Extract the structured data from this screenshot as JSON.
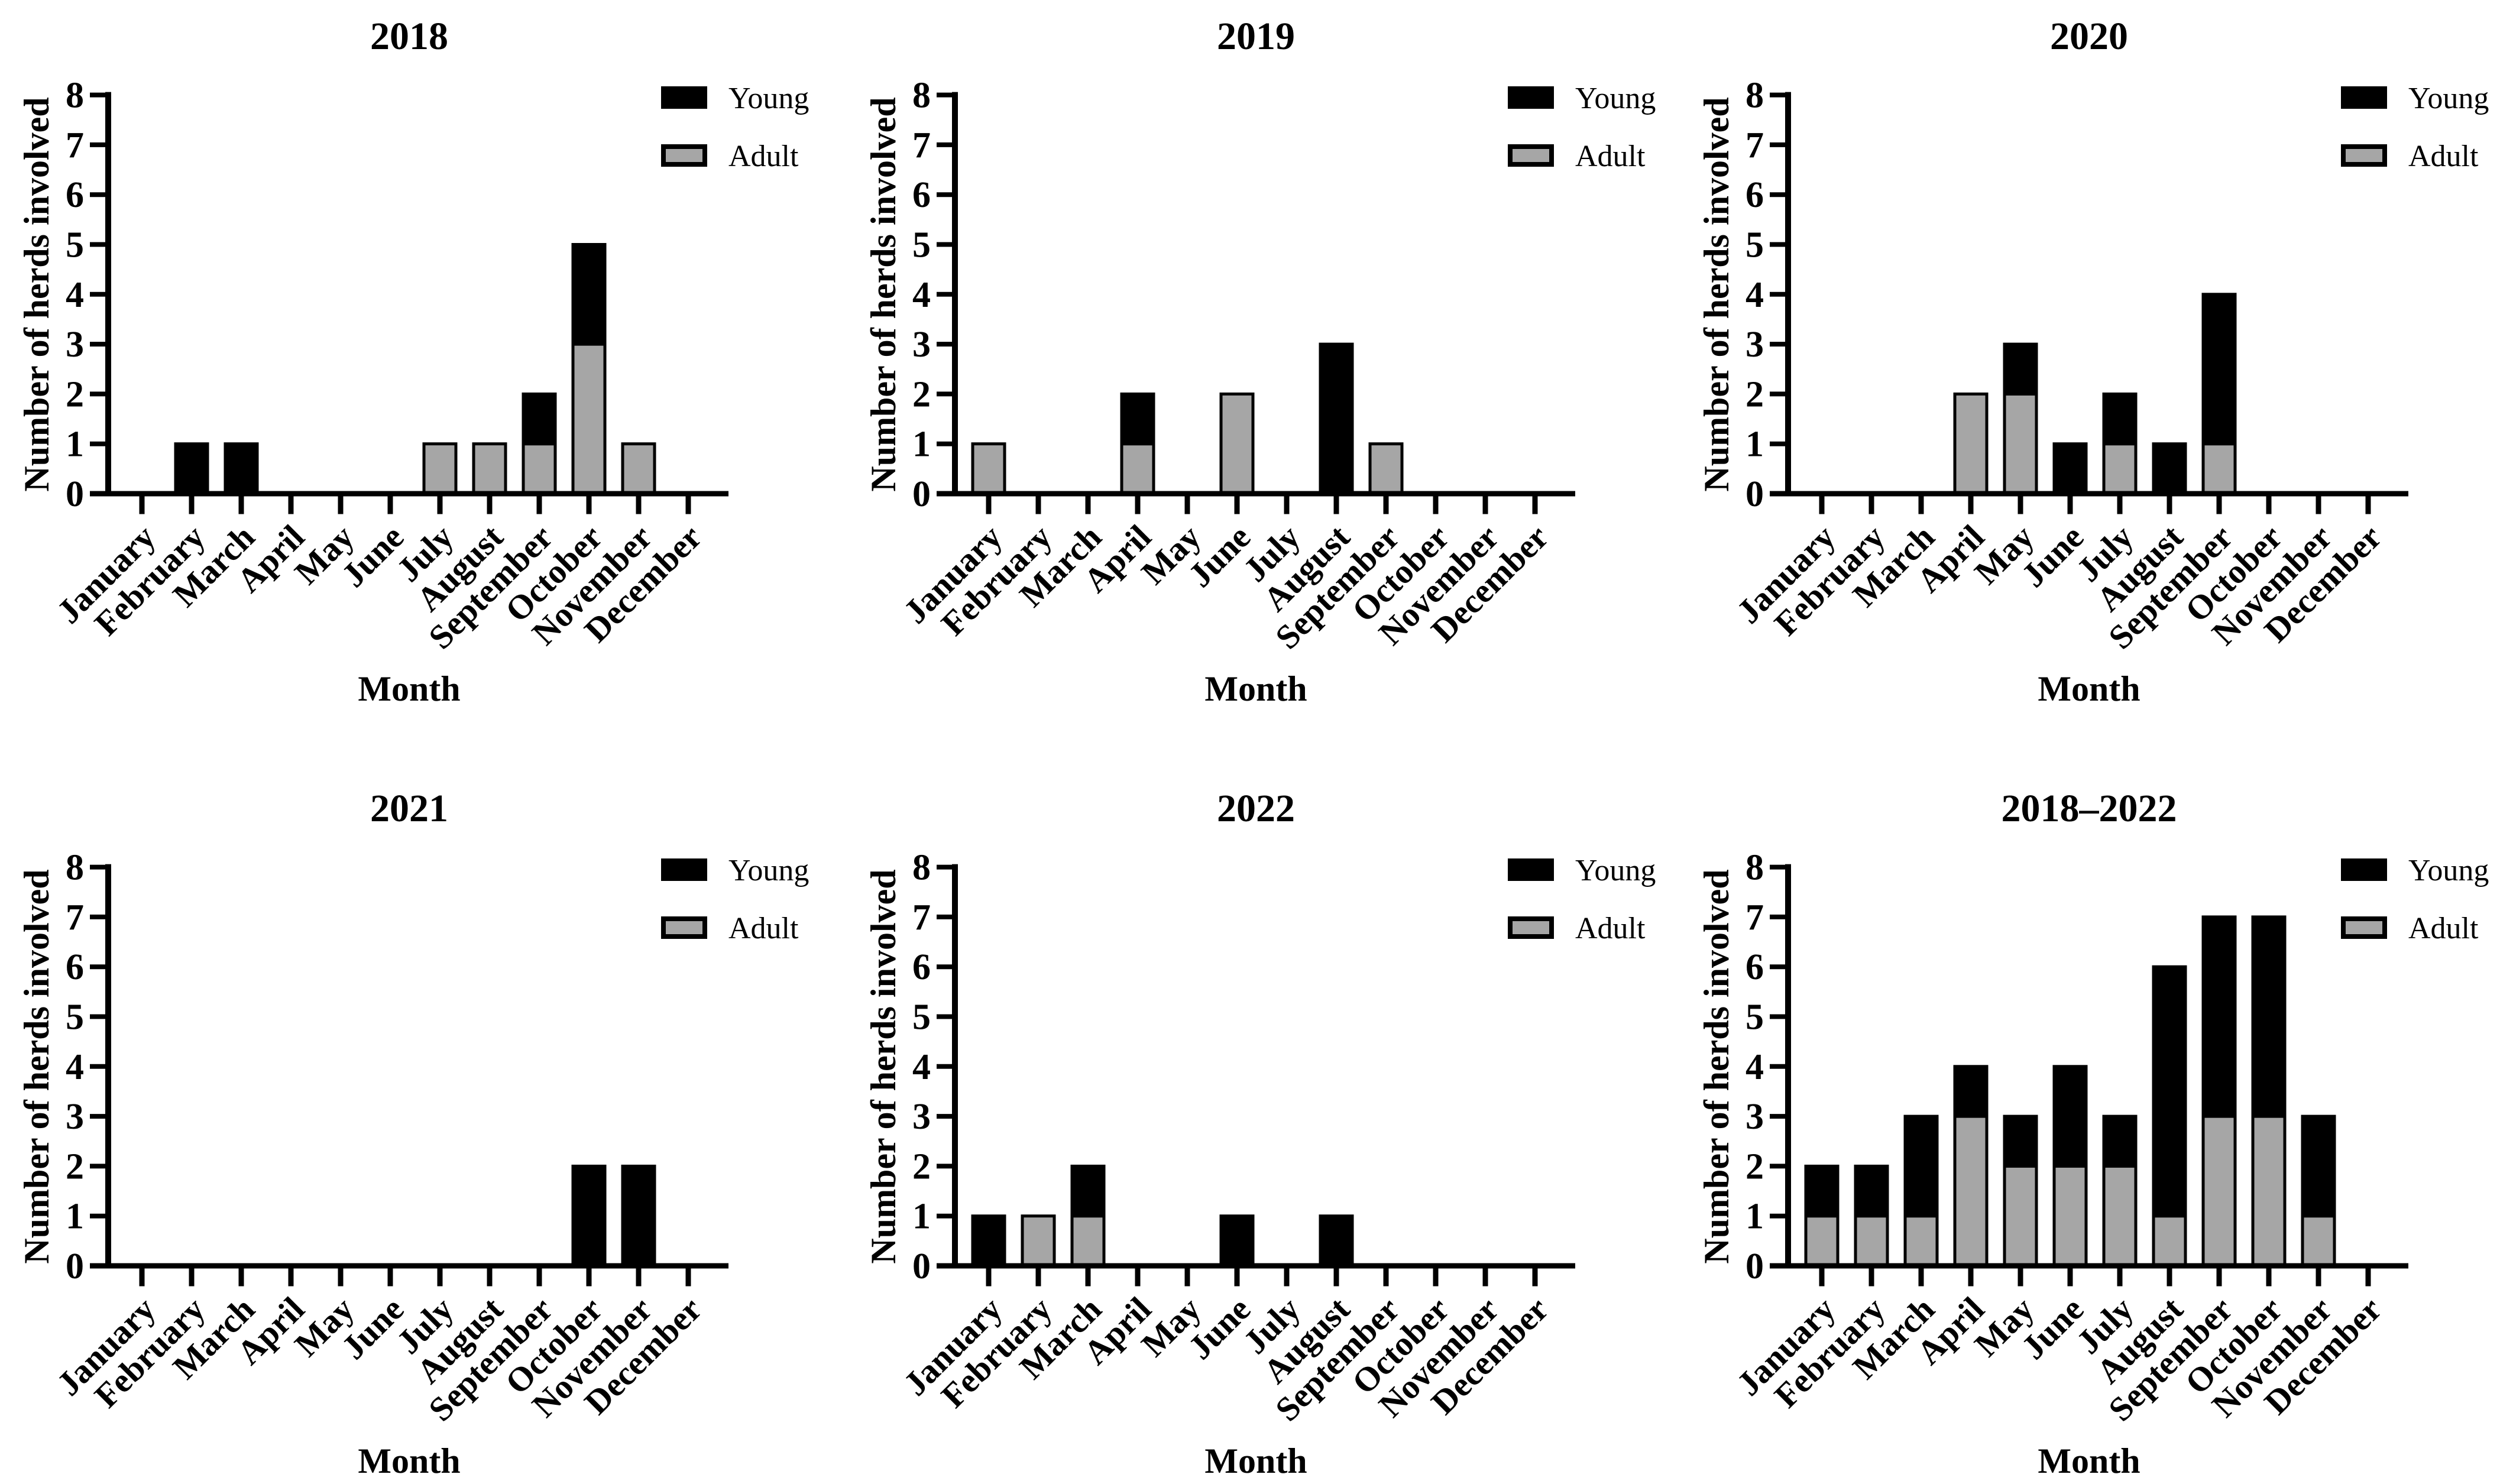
{
  "figure": {
    "background": "#ffffff",
    "ylabel": "Number of herds involved",
    "xlabel": "Month",
    "yticks": [
      0,
      1,
      2,
      3,
      4,
      5,
      6,
      7,
      8
    ],
    "months": [
      "January",
      "February",
      "March",
      "April",
      "May",
      "June",
      "July",
      "August",
      "September",
      "October",
      "November",
      "December"
    ],
    "legend": {
      "young_label": "Young",
      "adult_label": "Adult"
    },
    "colors": {
      "young": "#000000",
      "adult": "#a6a6a6",
      "axis": "#000000",
      "background": "#ffffff"
    }
  },
  "chart_data": [
    {
      "type": "bar",
      "stacked": true,
      "title": "2018",
      "xlabel": "Month",
      "ylabel": "Number of herds involved",
      "ylim": [
        0,
        8
      ],
      "grid": false,
      "legend_position": "top-right",
      "legend": [
        "Young",
        "Adult"
      ],
      "stack_order": [
        "Adult",
        "Young"
      ],
      "categories": [
        "January",
        "February",
        "March",
        "April",
        "May",
        "June",
        "July",
        "August",
        "September",
        "October",
        "November",
        "December"
      ],
      "series": [
        {
          "name": "Young",
          "color": "#000000",
          "values": [
            0,
            1,
            1,
            0,
            0,
            0,
            0,
            0,
            1,
            2,
            0,
            0
          ]
        },
        {
          "name": "Adult",
          "color": "#a6a6a6",
          "values": [
            0,
            0,
            0,
            0,
            0,
            0,
            1,
            1,
            1,
            3,
            1,
            0
          ]
        }
      ]
    },
    {
      "type": "bar",
      "stacked": true,
      "title": "2019",
      "xlabel": "Month",
      "ylabel": "Number of herds involved",
      "ylim": [
        0,
        8
      ],
      "grid": false,
      "legend_position": "top-right",
      "legend": [
        "Young",
        "Adult"
      ],
      "stack_order": [
        "Adult",
        "Young"
      ],
      "categories": [
        "January",
        "February",
        "March",
        "April",
        "May",
        "June",
        "July",
        "August",
        "September",
        "October",
        "November",
        "December"
      ],
      "series": [
        {
          "name": "Young",
          "color": "#000000",
          "values": [
            0,
            0,
            0,
            1,
            0,
            0,
            0,
            3,
            0,
            0,
            0,
            0
          ]
        },
        {
          "name": "Adult",
          "color": "#a6a6a6",
          "values": [
            1,
            0,
            0,
            1,
            0,
            2,
            0,
            0,
            1,
            0,
            0,
            0
          ]
        }
      ]
    },
    {
      "type": "bar",
      "stacked": true,
      "title": "2020",
      "xlabel": "Month",
      "ylabel": "Number of herds involved",
      "ylim": [
        0,
        8
      ],
      "grid": false,
      "legend_position": "top-right",
      "legend": [
        "Young",
        "Adult"
      ],
      "stack_order": [
        "Adult",
        "Young"
      ],
      "categories": [
        "January",
        "February",
        "March",
        "April",
        "May",
        "June",
        "July",
        "August",
        "September",
        "October",
        "November",
        "December"
      ],
      "series": [
        {
          "name": "Young",
          "color": "#000000",
          "values": [
            0,
            0,
            0,
            0,
            1,
            1,
            1,
            1,
            3,
            0,
            0,
            0
          ]
        },
        {
          "name": "Adult",
          "color": "#a6a6a6",
          "values": [
            0,
            0,
            0,
            2,
            2,
            0,
            1,
            0,
            1,
            0,
            0,
            0
          ]
        }
      ]
    },
    {
      "type": "bar",
      "stacked": true,
      "title": "2021",
      "xlabel": "Month",
      "ylabel": "Number of herds involved",
      "ylim": [
        0,
        8
      ],
      "grid": false,
      "legend_position": "top-right",
      "legend": [
        "Young",
        "Adult"
      ],
      "stack_order": [
        "Adult",
        "Young"
      ],
      "categories": [
        "January",
        "February",
        "March",
        "April",
        "May",
        "June",
        "July",
        "August",
        "September",
        "October",
        "November",
        "December"
      ],
      "series": [
        {
          "name": "Young",
          "color": "#000000",
          "values": [
            0,
            0,
            0,
            0,
            0,
            0,
            0,
            0,
            0,
            2,
            2,
            0
          ]
        },
        {
          "name": "Adult",
          "color": "#a6a6a6",
          "values": [
            0,
            0,
            0,
            0,
            0,
            0,
            0,
            0,
            0,
            0,
            0,
            0
          ]
        }
      ]
    },
    {
      "type": "bar",
      "stacked": true,
      "title": "2022",
      "xlabel": "Month",
      "ylabel": "Number of herds involved",
      "ylim": [
        0,
        8
      ],
      "grid": false,
      "legend_position": "top-right",
      "legend": [
        "Young",
        "Adult"
      ],
      "stack_order": [
        "Adult",
        "Young"
      ],
      "categories": [
        "January",
        "February",
        "March",
        "April",
        "May",
        "June",
        "July",
        "August",
        "September",
        "October",
        "November",
        "December"
      ],
      "series": [
        {
          "name": "Young",
          "color": "#000000",
          "values": [
            1,
            0,
            1,
            0,
            0,
            1,
            0,
            1,
            0,
            0,
            0,
            0
          ]
        },
        {
          "name": "Adult",
          "color": "#a6a6a6",
          "values": [
            0,
            1,
            1,
            0,
            0,
            0,
            0,
            0,
            0,
            0,
            0,
            0
          ]
        }
      ]
    },
    {
      "type": "bar",
      "stacked": true,
      "title": "2018–2022",
      "xlabel": "Month",
      "ylabel": "Number of herds involved",
      "ylim": [
        0,
        8
      ],
      "grid": false,
      "legend_position": "top-right",
      "legend": [
        "Young",
        "Adult"
      ],
      "stack_order": [
        "Adult",
        "Young"
      ],
      "categories": [
        "January",
        "February",
        "March",
        "April",
        "May",
        "June",
        "July",
        "August",
        "September",
        "October",
        "November",
        "December"
      ],
      "series": [
        {
          "name": "Young",
          "color": "#000000",
          "values": [
            1,
            1,
            2,
            1,
            1,
            2,
            1,
            5,
            4,
            4,
            2,
            0
          ]
        },
        {
          "name": "Adult",
          "color": "#a6a6a6",
          "values": [
            1,
            1,
            1,
            3,
            2,
            2,
            2,
            1,
            3,
            3,
            1,
            0
          ]
        }
      ]
    }
  ]
}
